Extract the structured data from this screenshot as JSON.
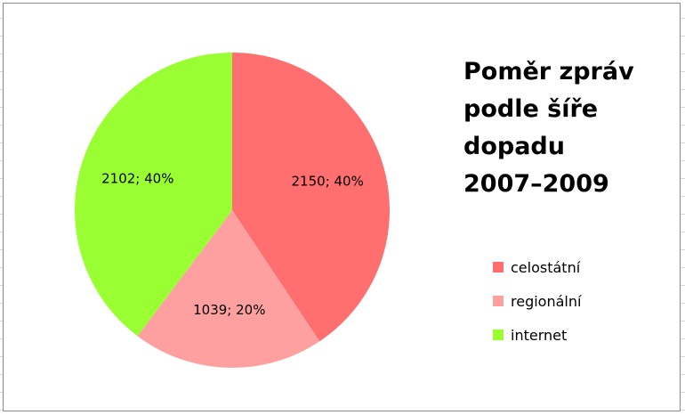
{
  "chart_data": {
    "type": "pie",
    "title_lines": [
      "Poměr zpráv",
      "podle šíře",
      "dopadu",
      "2007–2009"
    ],
    "categories": [
      "celostátní",
      "regionální",
      "internet"
    ],
    "values": [
      2150,
      1039,
      2102
    ],
    "percent_labels": [
      "40%",
      "20%",
      "40%"
    ],
    "data_labels": [
      "2150; 40%",
      "1039; 20%",
      "2102; 40%"
    ],
    "colors": [
      "#ff6f6f",
      "#ffa0a0",
      "#99ff33"
    ],
    "start_angle_deg": 0,
    "direction": "clockwise",
    "legend_position": "right"
  }
}
